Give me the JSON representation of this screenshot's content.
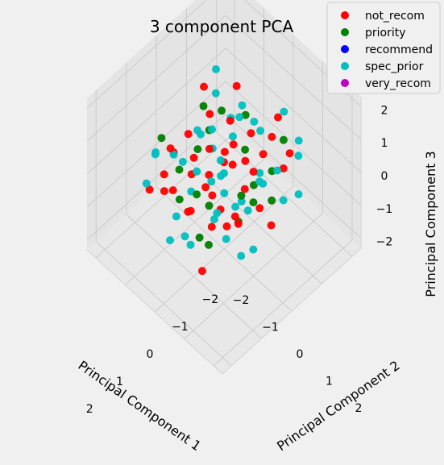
{
  "chart_data": {
    "type": "scatter",
    "projection": "3d",
    "title": "3 component PCA",
    "xlabel": "Principal Component 1",
    "ylabel": "Principal Component 2",
    "zlabel": "Principal Component 3",
    "xlim": [
      -2.3,
      2.3
    ],
    "ylim": [
      -2.3,
      2.3
    ],
    "zlim": [
      -2.3,
      2.3
    ],
    "xticks": [
      "2",
      "1",
      "0",
      "−1",
      "−2"
    ],
    "yticks": [
      "−2",
      "−1",
      "0",
      "1",
      "2"
    ],
    "zticks": [
      "2",
      "1",
      "0",
      "−1",
      "−2"
    ],
    "grid": true,
    "legend_position": "top-right",
    "series": [
      {
        "name": "not_recom",
        "color": "#ff0000",
        "points": [
          [
            1.5,
            -0.5,
            0.8
          ],
          [
            1.4,
            -0.3,
            0.4
          ],
          [
            1.3,
            0.2,
            0.1
          ],
          [
            1.2,
            -0.8,
            -0.2
          ],
          [
            1.1,
            0.5,
            0.9
          ],
          [
            1.0,
            -0.2,
            -0.5
          ],
          [
            0.9,
            0.8,
            0.3
          ],
          [
            0.8,
            -1.0,
            0.6
          ],
          [
            0.7,
            0.3,
            -0.8
          ],
          [
            0.6,
            -0.6,
            1.2
          ],
          [
            0.5,
            1.0,
            -0.3
          ],
          [
            0.4,
            -0.1,
            0.2
          ],
          [
            0.3,
            0.6,
            1.0
          ],
          [
            0.2,
            -0.9,
            -0.6
          ],
          [
            0.1,
            0.1,
            0.5
          ],
          [
            0.0,
            -0.4,
            -1.0
          ],
          [
            -0.1,
            0.9,
            0.7
          ],
          [
            -0.2,
            -0.7,
            0.0
          ],
          [
            -0.3,
            0.4,
            -0.4
          ],
          [
            -0.4,
            -0.2,
            1.1
          ],
          [
            -0.5,
            0.7,
            -0.9
          ],
          [
            -0.6,
            -1.1,
            0.4
          ],
          [
            -0.7,
            0.2,
            0.8
          ],
          [
            -0.8,
            -0.5,
            -0.2
          ],
          [
            -0.9,
            1.1,
            0.3
          ],
          [
            -1.0,
            -0.3,
            -0.7
          ],
          [
            -1.1,
            0.5,
            0.6
          ],
          [
            -1.2,
            -0.8,
            1.0
          ],
          [
            -1.3,
            0.0,
            -0.5
          ],
          [
            -1.4,
            0.8,
            0.1
          ],
          [
            1.6,
            0.9,
            -0.9
          ],
          [
            1.3,
            -1.2,
            -0.4
          ],
          [
            0.9,
            1.3,
            0.5
          ],
          [
            0.4,
            -1.3,
            -0.1
          ],
          [
            -0.2,
            1.4,
            -0.6
          ],
          [
            -0.7,
            -1.4,
            0.9
          ],
          [
            -1.5,
            0.3,
            0.7
          ],
          [
            1.0,
            0.0,
            1.3
          ],
          [
            0.2,
            0.3,
            -1.2
          ],
          [
            -1.0,
            -1.0,
            -1.0
          ]
        ]
      },
      {
        "name": "priority",
        "color": "#008000",
        "points": [
          [
            1.2,
            0.3,
            0.6
          ],
          [
            0.8,
            -0.7,
            0.2
          ],
          [
            0.4,
            0.9,
            -0.4
          ],
          [
            0.0,
            -0.5,
            0.9
          ],
          [
            -0.4,
            0.6,
            -0.2
          ],
          [
            -0.8,
            -0.9,
            0.5
          ],
          [
            -1.2,
            0.4,
            -0.6
          ],
          [
            1.4,
            0.6,
            -0.3
          ],
          [
            0.6,
            1.2,
            0.8
          ],
          [
            -0.3,
            -1.2,
            -0.5
          ],
          [
            -1.0,
            1.0,
            1.0
          ],
          [
            0.3,
            -0.2,
            -0.9
          ],
          [
            1.0,
            -1.1,
            1.0
          ],
          [
            -0.6,
            0.1,
            0.3
          ],
          [
            0.1,
            1.1,
            0.1
          ],
          [
            -1.3,
            -0.6,
            0.2
          ],
          [
            0.9,
            0.4,
            -1.1
          ],
          [
            -0.1,
            -0.8,
            1.3
          ],
          [
            0.5,
            -1.0,
            -1.2
          ],
          [
            -0.9,
            0.7,
            -1.0
          ]
        ]
      },
      {
        "name": "recommend",
        "color": "#0000ff",
        "points": []
      },
      {
        "name": "spec_prior",
        "color": "#00bfbf",
        "points": [
          [
            1.6,
            -1.0,
            0.2
          ],
          [
            1.5,
            0.4,
            -0.6
          ],
          [
            1.4,
            -0.9,
            1.0
          ],
          [
            1.3,
            1.0,
            0.5
          ],
          [
            1.2,
            -0.1,
            -1.0
          ],
          [
            1.1,
            1.2,
            -0.1
          ],
          [
            1.0,
            -1.3,
            0.4
          ],
          [
            0.9,
            0.0,
            0.8
          ],
          [
            0.8,
            1.4,
            -0.7
          ],
          [
            0.7,
            -0.4,
            -0.3
          ],
          [
            0.6,
            0.5,
            1.3
          ],
          [
            0.5,
            -1.2,
            0.0
          ],
          [
            0.4,
            0.3,
            0.5
          ],
          [
            0.3,
            1.3,
            -1.0
          ],
          [
            0.2,
            -0.7,
            0.9
          ],
          [
            0.1,
            0.7,
            -0.2
          ],
          [
            0.0,
            -1.4,
            -0.8
          ],
          [
            -0.1,
            0.2,
            1.2
          ],
          [
            -0.2,
            1.0,
            0.4
          ],
          [
            -0.3,
            -0.3,
            -1.1
          ],
          [
            -0.4,
            1.4,
            0.9
          ],
          [
            -0.5,
            -0.9,
            -0.4
          ],
          [
            -0.6,
            0.6,
            0.0
          ],
          [
            -0.7,
            -0.1,
            1.4
          ],
          [
            -0.8,
            1.2,
            -0.5
          ],
          [
            -0.9,
            -1.2,
            0.7
          ],
          [
            -1.0,
            0.3,
            -0.9
          ],
          [
            -1.1,
            -0.6,
            0.3
          ],
          [
            -1.2,
            1.3,
            0.6
          ],
          [
            -1.3,
            -1.1,
            -0.3
          ],
          [
            -1.4,
            0.6,
            1.2
          ],
          [
            -1.5,
            -0.3,
            -0.2
          ],
          [
            -1.6,
            0.9,
            0.4
          ],
          [
            1.5,
            1.3,
            1.1
          ],
          [
            0.0,
            0.0,
            0.0
          ],
          [
            -0.5,
            0.3,
            -1.3
          ],
          [
            0.8,
            -0.8,
            -1.3
          ],
          [
            -1.1,
            -1.4,
            1.1
          ],
          [
            0.3,
            -0.1,
            1.5
          ],
          [
            1.2,
            0.8,
            1.4
          ],
          [
            -0.2,
            -1.0,
            0.2
          ],
          [
            0.6,
            1.0,
            0.3
          ],
          [
            -0.9,
            0.1,
            0.9
          ],
          [
            1.4,
            -0.4,
            -1.2
          ],
          [
            -1.4,
            1.1,
            -0.9
          ]
        ]
      },
      {
        "name": "very_recom",
        "color": "#bf00bf",
        "points": []
      }
    ]
  }
}
